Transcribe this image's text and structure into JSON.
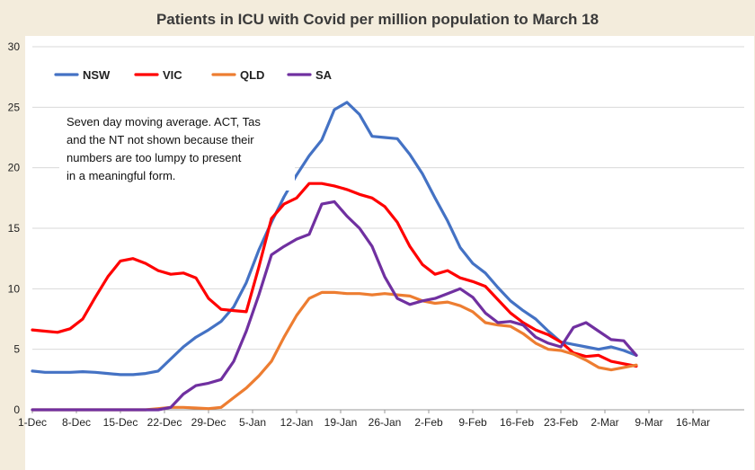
{
  "chart_data": {
    "type": "line",
    "title": "Patients in ICU with Covid per million population to March 18",
    "annotation": [
      "Seven day moving average. ACT, Tas",
      "and the NT not shown because their",
      "numbers are too lumpy to present",
      "in a meaningful form."
    ],
    "xlabel": "",
    "ylabel": "",
    "ylim": [
      0,
      30
    ],
    "yticks": [
      0,
      5,
      10,
      15,
      20,
      25,
      30
    ],
    "xtick_labels": [
      "1-Dec",
      "8-Dec",
      "15-Dec",
      "22-Dec",
      "29-Dec",
      "5-Jan",
      "12-Jan",
      "19-Jan",
      "26-Jan",
      "2-Feb",
      "9-Feb",
      "16-Feb",
      "23-Feb",
      "2-Mar",
      "9-Mar",
      "16-Mar"
    ],
    "x_start_date": "2021-12-01",
    "x_day_step": 2,
    "grid": true,
    "legend_position": "top-left",
    "series": [
      {
        "name": "NSW",
        "color": "#4472c4",
        "values": [
          3.2,
          3.1,
          3.1,
          3.1,
          3.15,
          3.1,
          3.0,
          2.9,
          2.9,
          3.0,
          3.2,
          4.2,
          5.2,
          6.0,
          6.6,
          7.3,
          8.5,
          10.5,
          13.2,
          15.5,
          17.6,
          19.4,
          21.0,
          22.3,
          24.8,
          25.4,
          24.4,
          22.6,
          22.5,
          22.4,
          21.1,
          19.5,
          17.5,
          15.6,
          13.4,
          12.1,
          11.3,
          10.1,
          9.0,
          8.2,
          7.5,
          6.5,
          5.6,
          5.4,
          5.2,
          5.0,
          5.2,
          4.9,
          4.5
        ]
      },
      {
        "name": "VIC",
        "color": "#ff0000",
        "values": [
          6.6,
          6.5,
          6.4,
          6.7,
          7.5,
          9.3,
          11.0,
          12.3,
          12.5,
          12.1,
          11.5,
          11.2,
          11.3,
          10.9,
          9.2,
          8.3,
          8.2,
          8.1,
          11.8,
          15.8,
          17.0,
          17.5,
          18.7,
          18.7,
          18.5,
          18.2,
          17.8,
          17.5,
          16.8,
          15.5,
          13.5,
          12.0,
          11.2,
          11.5,
          10.9,
          10.6,
          10.2,
          9.1,
          8.0,
          7.2,
          6.6,
          6.2,
          5.6,
          4.7,
          4.4,
          4.5,
          4.0,
          3.8,
          3.6
        ]
      },
      {
        "name": "QLD",
        "color": "#ed7d31",
        "values": [
          0,
          0,
          0,
          0,
          0,
          0,
          0,
          0,
          0,
          0,
          0.1,
          0.2,
          0.2,
          0.15,
          0.1,
          0.2,
          1.0,
          1.8,
          2.8,
          4.0,
          6.0,
          7.8,
          9.2,
          9.7,
          9.7,
          9.6,
          9.6,
          9.5,
          9.6,
          9.5,
          9.4,
          9.0,
          8.8,
          8.9,
          8.6,
          8.1,
          7.2,
          7.0,
          6.9,
          6.3,
          5.5,
          5.0,
          4.9,
          4.6,
          4.1,
          3.5,
          3.3,
          3.5,
          3.7
        ]
      },
      {
        "name": "SA",
        "color": "#7030a0",
        "values": [
          0,
          0,
          0,
          0,
          0,
          0,
          0,
          0,
          0,
          0,
          0,
          0.2,
          1.3,
          2.0,
          2.2,
          2.5,
          4.0,
          6.5,
          9.5,
          12.8,
          13.5,
          14.1,
          14.5,
          17.0,
          17.2,
          16.0,
          15.0,
          13.5,
          11.0,
          9.2,
          8.7,
          9.0,
          9.2,
          9.6,
          10.0,
          9.3,
          8.0,
          7.2,
          7.3,
          7.0,
          6.0,
          5.5,
          5.2,
          6.8,
          7.2,
          6.5,
          5.8,
          5.7,
          4.5
        ]
      }
    ]
  }
}
